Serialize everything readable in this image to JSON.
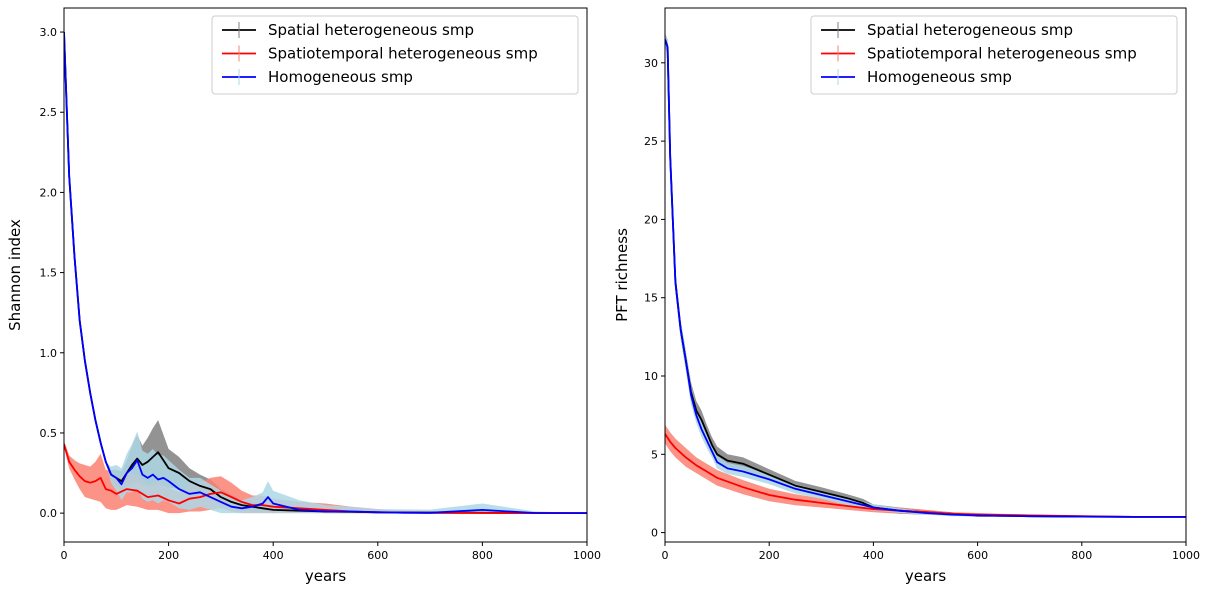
{
  "chart_data": [
    {
      "type": "line",
      "title": "",
      "xlabel": "years",
      "ylabel": "Shannon index",
      "xlim": [
        0,
        1000
      ],
      "ylim": [
        -0.18,
        3.15
      ],
      "xticks": [
        0,
        200,
        400,
        600,
        800,
        1000
      ],
      "yticks": [
        0.0,
        0.5,
        1.0,
        1.5,
        2.0,
        2.5,
        3.0
      ],
      "ytick_labels": [
        "0.0",
        "0.5",
        "1.0",
        "1.5",
        "2.0",
        "2.5",
        "3.0"
      ],
      "grid": false,
      "legend_position": "top-right",
      "series": [
        {
          "name": "Spatial heterogeneous smp",
          "color": "#000000",
          "band_color": "#808080",
          "x": [
            0,
            10,
            20,
            30,
            40,
            50,
            60,
            70,
            80,
            90,
            100,
            110,
            120,
            130,
            140,
            150,
            160,
            170,
            180,
            190,
            200,
            220,
            240,
            260,
            280,
            300,
            320,
            340,
            360,
            380,
            400,
            450,
            500,
            550,
            600,
            650,
            700,
            800,
            900,
            1000
          ],
          "y": [
            3.0,
            2.1,
            1.6,
            1.2,
            0.95,
            0.75,
            0.58,
            0.44,
            0.32,
            0.24,
            0.22,
            0.2,
            0.25,
            0.3,
            0.34,
            0.3,
            0.32,
            0.35,
            0.38,
            0.33,
            0.28,
            0.25,
            0.2,
            0.17,
            0.15,
            0.1,
            0.07,
            0.05,
            0.04,
            0.03,
            0.02,
            0.015,
            0.01,
            0.008,
            0.005,
            0.004,
            0.003,
            0.002,
            0.001,
            0.0
          ],
          "band": [
            0,
            0,
            0,
            0,
            0,
            0,
            0,
            0,
            0,
            0.03,
            0.05,
            0.06,
            0.08,
            0.12,
            0.15,
            0.12,
            0.15,
            0.18,
            0.2,
            0.16,
            0.12,
            0.1,
            0.08,
            0.07,
            0.06,
            0.05,
            0.04,
            0.03,
            0.03,
            0.02,
            0.02,
            0.01,
            0.01,
            0.01,
            0.01,
            0.01,
            0.01,
            0.01,
            0.0,
            0.0
          ]
        },
        {
          "name": "Spatiotemporal heterogeneous smp",
          "color": "#ff0000",
          "band_color": "#fa8072",
          "x": [
            0,
            10,
            20,
            30,
            40,
            50,
            60,
            70,
            80,
            90,
            100,
            120,
            140,
            160,
            180,
            200,
            220,
            240,
            260,
            280,
            300,
            320,
            340,
            360,
            380,
            400,
            450,
            500,
            550,
            600,
            650,
            700,
            800,
            900,
            1000
          ],
          "y": [
            0.43,
            0.32,
            0.27,
            0.23,
            0.2,
            0.19,
            0.2,
            0.22,
            0.15,
            0.14,
            0.12,
            0.15,
            0.14,
            0.1,
            0.11,
            0.08,
            0.06,
            0.09,
            0.1,
            0.12,
            0.13,
            0.1,
            0.07,
            0.05,
            0.05,
            0.04,
            0.03,
            0.02,
            0.01,
            0.005,
            0.003,
            0.002,
            0.001,
            0.0,
            0.0
          ],
          "band": [
            0.02,
            0.04,
            0.06,
            0.08,
            0.1,
            0.1,
            0.12,
            0.15,
            0.12,
            0.12,
            0.1,
            0.1,
            0.1,
            0.08,
            0.09,
            0.08,
            0.07,
            0.08,
            0.09,
            0.1,
            0.1,
            0.09,
            0.07,
            0.06,
            0.06,
            0.05,
            0.04,
            0.04,
            0.03,
            0.02,
            0.01,
            0.01,
            0.0,
            0.0,
            0.0
          ]
        },
        {
          "name": "Homogeneous smp",
          "color": "#0000ff",
          "band_color": "#add8e6",
          "x": [
            0,
            10,
            20,
            30,
            40,
            50,
            60,
            70,
            80,
            90,
            100,
            110,
            120,
            130,
            140,
            150,
            160,
            170,
            180,
            190,
            200,
            220,
            240,
            260,
            280,
            300,
            320,
            340,
            360,
            380,
            390,
            400,
            450,
            500,
            550,
            600,
            650,
            700,
            800,
            900,
            1000
          ],
          "y": [
            3.0,
            2.1,
            1.6,
            1.2,
            0.95,
            0.75,
            0.58,
            0.44,
            0.32,
            0.24,
            0.22,
            0.18,
            0.25,
            0.28,
            0.33,
            0.24,
            0.22,
            0.24,
            0.21,
            0.22,
            0.2,
            0.15,
            0.12,
            0.13,
            0.1,
            0.07,
            0.04,
            0.03,
            0.04,
            0.06,
            0.1,
            0.06,
            0.02,
            0.01,
            0.01,
            0.005,
            0.003,
            0.002,
            0.02,
            0.001,
            0.0
          ],
          "band": [
            0,
            0,
            0,
            0,
            0,
            0,
            0,
            0,
            0,
            0.05,
            0.08,
            0.1,
            0.12,
            0.15,
            0.18,
            0.15,
            0.15,
            0.16,
            0.15,
            0.14,
            0.13,
            0.12,
            0.1,
            0.09,
            0.08,
            0.07,
            0.06,
            0.05,
            0.06,
            0.07,
            0.1,
            0.08,
            0.06,
            0.04,
            0.03,
            0.02,
            0.02,
            0.02,
            0.04,
            0.01,
            0.0
          ]
        }
      ]
    },
    {
      "type": "line",
      "title": "",
      "xlabel": "years",
      "ylabel": "PFT richness",
      "xlim": [
        0,
        1000
      ],
      "ylim": [
        -0.6,
        33.5
      ],
      "xticks": [
        0,
        200,
        400,
        600,
        800,
        1000
      ],
      "yticks": [
        0,
        5,
        10,
        15,
        20,
        25,
        30
      ],
      "ytick_labels": [
        "0",
        "5",
        "10",
        "15",
        "20",
        "25",
        "30"
      ],
      "grid": false,
      "legend_position": "top-right",
      "series": [
        {
          "name": "Spatial heterogeneous smp",
          "color": "#000000",
          "band_color": "#808080",
          "x": [
            0,
            5,
            10,
            15,
            20,
            30,
            40,
            50,
            60,
            70,
            80,
            90,
            100,
            120,
            150,
            200,
            250,
            300,
            350,
            380,
            400,
            450,
            500,
            550,
            600,
            700,
            800,
            900,
            1000
          ],
          "y": [
            31.5,
            31.0,
            24.0,
            20.0,
            16.0,
            13.0,
            11.0,
            9.0,
            7.8,
            7.2,
            6.4,
            5.6,
            5.0,
            4.6,
            4.4,
            3.7,
            3.0,
            2.6,
            2.2,
            1.9,
            1.6,
            1.4,
            1.3,
            1.2,
            1.1,
            1.05,
            1.02,
            1.0,
            1.0
          ],
          "band": [
            0.4,
            0.5,
            0.6,
            0.6,
            0.6,
            0.6,
            0.6,
            0.6,
            0.6,
            0.6,
            0.5,
            0.5,
            0.5,
            0.4,
            0.4,
            0.35,
            0.3,
            0.3,
            0.25,
            0.25,
            0.2,
            0.2,
            0.15,
            0.1,
            0.1,
            0.05,
            0.05,
            0.0,
            0.0
          ]
        },
        {
          "name": "Spatiotemporal heterogeneous smp",
          "color": "#ff0000",
          "band_color": "#fa8072",
          "x": [
            0,
            10,
            20,
            40,
            60,
            80,
            100,
            150,
            200,
            250,
            300,
            350,
            400,
            450,
            500,
            550,
            600,
            700,
            800,
            900,
            1000
          ],
          "y": [
            6.3,
            5.8,
            5.4,
            4.8,
            4.3,
            3.9,
            3.5,
            2.9,
            2.4,
            2.1,
            1.9,
            1.7,
            1.5,
            1.4,
            1.3,
            1.2,
            1.15,
            1.1,
            1.05,
            1.0,
            1.0
          ],
          "band": [
            0.6,
            0.6,
            0.6,
            0.6,
            0.5,
            0.5,
            0.5,
            0.45,
            0.4,
            0.35,
            0.3,
            0.25,
            0.2,
            0.2,
            0.15,
            0.1,
            0.1,
            0.05,
            0.05,
            0.0,
            0.0
          ]
        },
        {
          "name": "Homogeneous smp",
          "color": "#0000ff",
          "band_color": "#add8e6",
          "x": [
            0,
            5,
            10,
            15,
            20,
            30,
            40,
            50,
            60,
            70,
            80,
            90,
            100,
            120,
            150,
            200,
            250,
            300,
            350,
            400,
            450,
            500,
            550,
            600,
            700,
            800,
            900,
            1000
          ],
          "y": [
            31.5,
            31.0,
            24.0,
            20.0,
            16.0,
            13.0,
            11.0,
            8.8,
            7.5,
            6.6,
            5.9,
            5.2,
            4.5,
            4.1,
            3.9,
            3.4,
            2.8,
            2.4,
            2.0,
            1.6,
            1.4,
            1.25,
            1.15,
            1.1,
            1.05,
            1.02,
            1.0,
            1.0
          ],
          "band": [
            0.4,
            0.5,
            0.6,
            0.6,
            0.6,
            0.6,
            0.6,
            0.6,
            0.5,
            0.5,
            0.5,
            0.4,
            0.4,
            0.35,
            0.35,
            0.3,
            0.3,
            0.25,
            0.25,
            0.2,
            0.15,
            0.1,
            0.1,
            0.05,
            0.05,
            0.0,
            0.0,
            0.0
          ]
        }
      ]
    }
  ]
}
